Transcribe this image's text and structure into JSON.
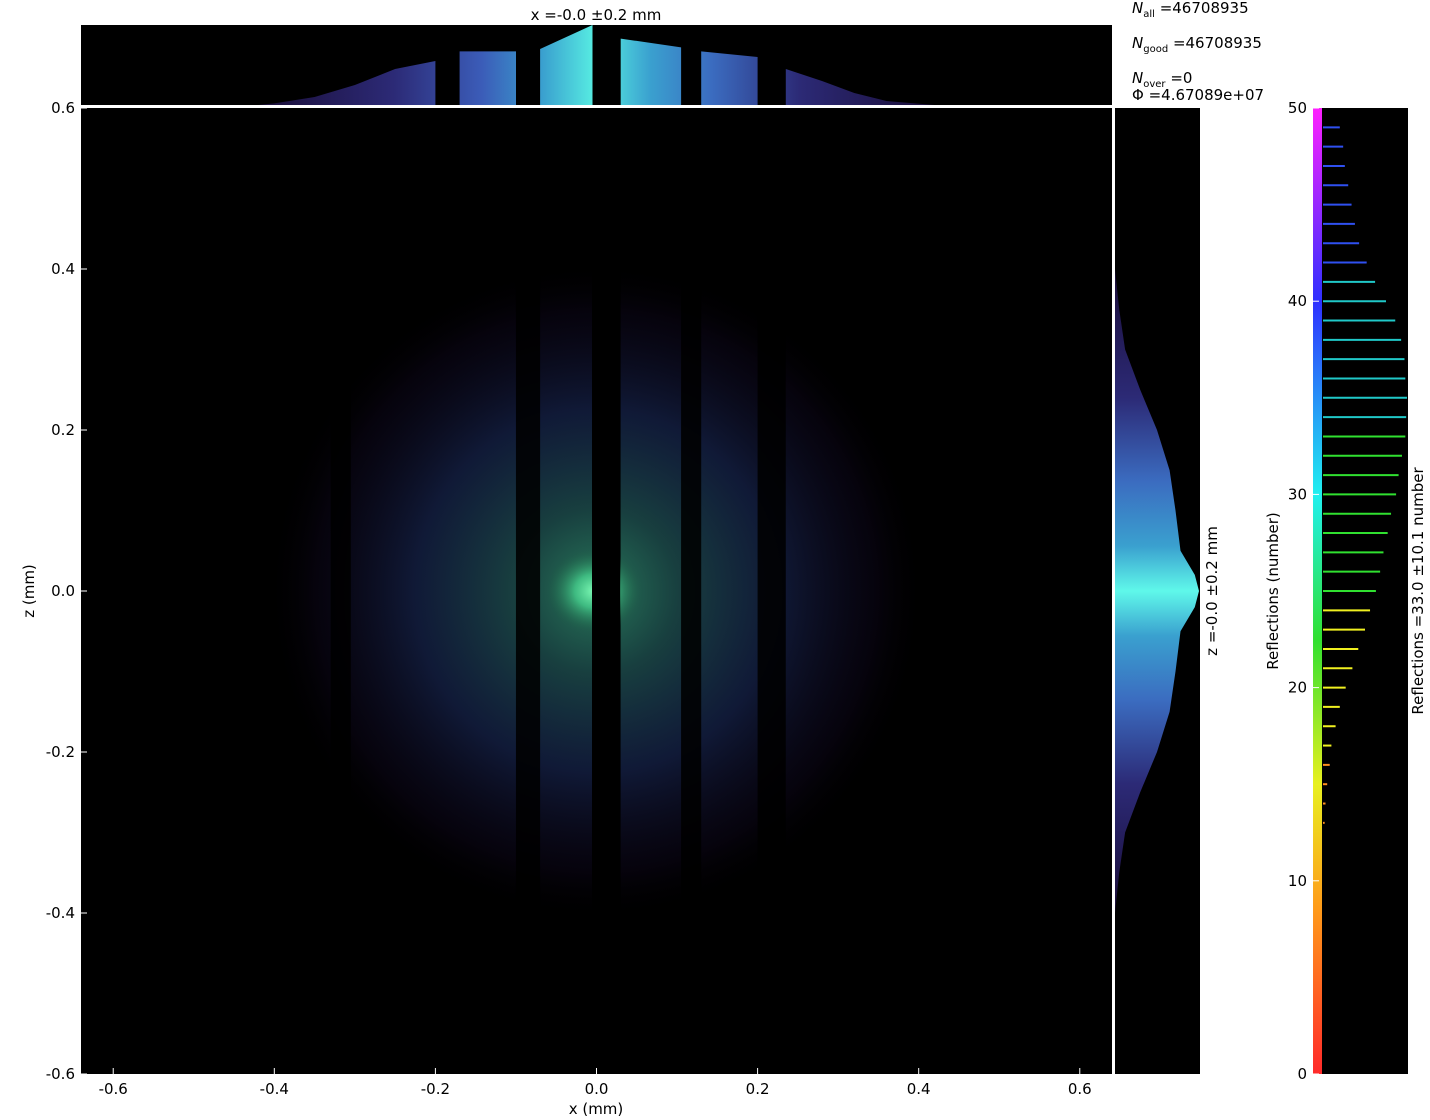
{
  "chart_data": [
    {
      "type": "heatmap",
      "panel": "main-2d",
      "xlabel": "x (mm)",
      "ylabel": "z (mm)",
      "xlim": [
        -0.64,
        0.64
      ],
      "ylim": [
        -0.6,
        0.6
      ],
      "x_ticks": [
        "-0.6",
        "-0.4",
        "-0.2",
        "0.0",
        "0.2",
        "0.4",
        "0.6"
      ],
      "y_ticks": [
        "0.6",
        "0.4",
        "0.2",
        "0.0",
        "-0.2",
        "-0.4",
        "-0.6"
      ],
      "x_tick_values": [
        -0.6,
        -0.4,
        -0.2,
        0.0,
        0.2,
        0.4,
        0.6
      ],
      "y_tick_values": [
        0.6,
        0.4,
        0.2,
        0.0,
        -0.2,
        -0.4,
        -0.6
      ],
      "background": "#000000",
      "beam_center": [
        0.0,
        0.0
      ],
      "beam_sigma_x": 0.2,
      "beam_sigma_z": 0.2,
      "bright_spot_color": "#55e89a",
      "dark_gaps_x": [
        [
          -0.33,
          -0.305
        ],
        [
          -0.1,
          -0.07
        ],
        [
          -0.005,
          0.03
        ],
        [
          0.105,
          0.13
        ],
        [
          0.2,
          0.235
        ]
      ],
      "slit_edges_x": [
        [
          -0.42,
          -0.2
        ],
        [
          -0.17,
          -0.1
        ],
        [
          -0.07,
          -0.005
        ],
        [
          0.03,
          0.105
        ],
        [
          0.13,
          0.2
        ],
        [
          0.235,
          0.42
        ]
      ]
    },
    {
      "type": "area",
      "panel": "top-histogram-x",
      "title": "x =-0.0 ±0.2 mm",
      "x": [
        -0.42,
        -0.4,
        -0.35,
        -0.3,
        -0.25,
        -0.2,
        -0.2,
        -0.17,
        -0.17,
        -0.1,
        -0.1,
        -0.07,
        -0.07,
        -0.005,
        -0.005,
        0.03,
        0.03,
        0.105,
        0.105,
        0.13,
        0.13,
        0.2,
        0.2,
        0.235,
        0.235,
        0.28,
        0.32,
        0.36,
        0.42
      ],
      "values": [
        0.0,
        0.02,
        0.1,
        0.25,
        0.45,
        0.55,
        0.0,
        0.0,
        0.67,
        0.67,
        0.0,
        0.0,
        0.7,
        1.0,
        0.0,
        0.0,
        0.83,
        0.72,
        0.0,
        0.0,
        0.67,
        0.6,
        0.0,
        0.0,
        0.45,
        0.3,
        0.15,
        0.05,
        0.0
      ],
      "colors": [
        "#2a1456",
        "#3a58b8",
        "#3aa9d6",
        "#5cf5e6"
      ]
    },
    {
      "type": "area",
      "panel": "right-histogram-z",
      "title": "z =-0.0 ±0.2 mm",
      "z": [
        0.4,
        0.35,
        0.3,
        0.25,
        0.2,
        0.15,
        0.1,
        0.05,
        0.02,
        0.0,
        -0.02,
        -0.05,
        -0.1,
        -0.15,
        -0.2,
        -0.25,
        -0.3,
        -0.35,
        -0.4
      ],
      "values": [
        0.0,
        0.05,
        0.12,
        0.3,
        0.5,
        0.65,
        0.72,
        0.78,
        0.95,
        1.0,
        0.95,
        0.78,
        0.72,
        0.65,
        0.5,
        0.3,
        0.12,
        0.05,
        0.0
      ]
    },
    {
      "type": "bar",
      "panel": "reflections-histogram",
      "ylabel": "Reflections (number)",
      "secondary_label": "Reflections =33.0 ±10.1 number",
      "ylim": [
        0,
        50
      ],
      "y_ticks": [
        "0",
        "10",
        "20",
        "30",
        "40",
        "50"
      ],
      "y_tick_values": [
        0,
        10,
        20,
        30,
        40,
        50
      ],
      "categories": [
        13,
        14,
        15,
        16,
        17,
        18,
        19,
        20,
        21,
        22,
        23,
        24,
        25,
        26,
        27,
        28,
        29,
        30,
        31,
        32,
        33,
        34,
        35,
        36,
        37,
        38,
        39,
        40,
        41,
        42,
        43,
        44,
        45,
        46,
        47,
        48,
        49
      ],
      "values": [
        0.02,
        0.03,
        0.05,
        0.08,
        0.1,
        0.15,
        0.2,
        0.27,
        0.35,
        0.42,
        0.5,
        0.56,
        0.63,
        0.68,
        0.72,
        0.77,
        0.81,
        0.87,
        0.9,
        0.94,
        0.98,
        0.99,
        1.0,
        0.98,
        0.97,
        0.93,
        0.86,
        0.75,
        0.62,
        0.52,
        0.43,
        0.38,
        0.34,
        0.3,
        0.26,
        0.24,
        0.2
      ],
      "colormap": [
        "#ff3030",
        "#ff9020",
        "#f0f020",
        "#30e030",
        "#20c8c8",
        "#2f50f0",
        "#ff20ff"
      ]
    }
  ],
  "stats": {
    "n_all": "46708935",
    "n_good": "46708935",
    "n_over": "0",
    "flux": "4.67089e+07",
    "n_all_label_main": "N",
    "n_all_label_sub": "all",
    "n_good_label_main": "N",
    "n_good_label_sub": "good",
    "n_over_label_main": "N",
    "n_over_label_sub": "over",
    "flux_label": "Φ"
  }
}
